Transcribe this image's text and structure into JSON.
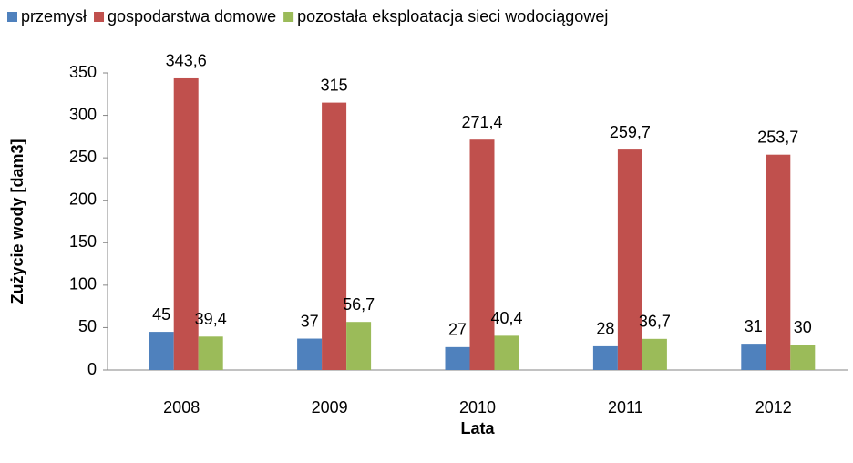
{
  "chart_data": {
    "type": "bar",
    "categories": [
      "2008",
      "2009",
      "2010",
      "2011",
      "2012"
    ],
    "series": [
      {
        "name": "przemysł",
        "color": "#4f81bd",
        "values": [
          45,
          37,
          27,
          28,
          31
        ],
        "value_labels": [
          "45",
          "37",
          "27",
          "28",
          "31"
        ]
      },
      {
        "name": "gospodarstwa domowe",
        "color": "#c0504d",
        "values": [
          343.6,
          315,
          271.4,
          259.7,
          253.7
        ],
        "value_labels": [
          "343,6",
          "315",
          "271,4",
          "259,7",
          "253,7"
        ]
      },
      {
        "name": "pozostała eksploatacja sieci wodociągowej",
        "color": "#9bbb59",
        "values": [
          39.4,
          56.7,
          40.4,
          36.7,
          30
        ],
        "value_labels": [
          "39,4",
          "56,7",
          "40,4",
          "36,7",
          "30"
        ]
      }
    ],
    "ylim": [
      0,
      350
    ],
    "yticks": [
      0,
      50,
      100,
      150,
      200,
      250,
      300,
      350
    ],
    "y_label": "Zużycie wody [dam3]",
    "x_label": "Lata",
    "legend": "top"
  }
}
